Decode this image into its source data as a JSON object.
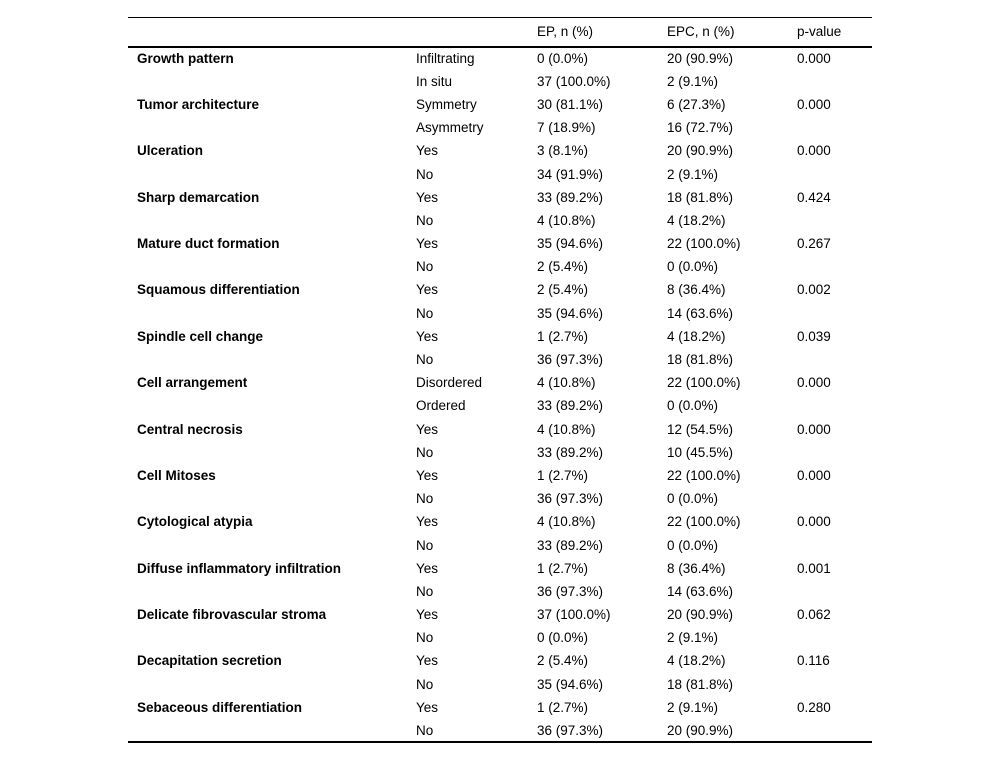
{
  "colors": {
    "text": "#000000",
    "background": "#ffffff",
    "rule": "#000000"
  },
  "table": {
    "header": {
      "category": "",
      "subcategory": "",
      "ep": "EP, n (%)",
      "epc": "EPC, n (%)",
      "pvalue": "p-value"
    },
    "rows": [
      {
        "category": "Growth pattern",
        "subcategory": "Infiltrating",
        "ep": "0 (0.0%)",
        "epc": "20 (90.9%)",
        "p": "0.000"
      },
      {
        "category": "",
        "subcategory": "In situ",
        "ep": "37 (100.0%)",
        "epc": "2 (9.1%)",
        "p": ""
      },
      {
        "category": "Tumor architecture",
        "subcategory": "Symmetry",
        "ep": "30 (81.1%)",
        "epc": "6 (27.3%)",
        "p": "0.000"
      },
      {
        "category": "",
        "subcategory": "Asymmetry",
        "ep": "7 (18.9%)",
        "epc": "16 (72.7%)",
        "p": ""
      },
      {
        "category": "Ulceration",
        "subcategory": "Yes",
        "ep": "3 (8.1%)",
        "epc": "20 (90.9%)",
        "p": "0.000"
      },
      {
        "category": "",
        "subcategory": "No",
        "ep": "34 (91.9%)",
        "epc": "2 (9.1%)",
        "p": ""
      },
      {
        "category": "Sharp demarcation",
        "subcategory": "Yes",
        "ep": "33 (89.2%)",
        "epc": "18 (81.8%)",
        "p": "0.424"
      },
      {
        "category": "",
        "subcategory": "No",
        "ep": "4 (10.8%)",
        "epc": "4 (18.2%)",
        "p": ""
      },
      {
        "category": "Mature duct formation",
        "subcategory": "Yes",
        "ep": "35 (94.6%)",
        "epc": "22 (100.0%)",
        "p": "0.267"
      },
      {
        "category": "",
        "subcategory": "No",
        "ep": "2 (5.4%)",
        "epc": "0 (0.0%)",
        "p": ""
      },
      {
        "category": "Squamous differentiation",
        "subcategory": "Yes",
        "ep": "2 (5.4%)",
        "epc": "8 (36.4%)",
        "p": "0.002"
      },
      {
        "category": "",
        "subcategory": "No",
        "ep": "35 (94.6%)",
        "epc": "14 (63.6%)",
        "p": ""
      },
      {
        "category": "Spindle cell change",
        "subcategory": "Yes",
        "ep": "1 (2.7%)",
        "epc": "4 (18.2%)",
        "p": "0.039"
      },
      {
        "category": "",
        "subcategory": "No",
        "ep": "36 (97.3%)",
        "epc": "18 (81.8%)",
        "p": ""
      },
      {
        "category": "Cell arrangement",
        "subcategory": "Disordered",
        "ep": "4 (10.8%)",
        "epc": "22 (100.0%)",
        "p": "0.000"
      },
      {
        "category": "",
        "subcategory": "Ordered",
        "ep": "33 (89.2%)",
        "epc": "0 (0.0%)",
        "p": ""
      },
      {
        "category": "Central necrosis",
        "subcategory": "Yes",
        "ep": "4 (10.8%)",
        "epc": "12 (54.5%)",
        "p": "0.000"
      },
      {
        "category": "",
        "subcategory": "No",
        "ep": "33 (89.2%)",
        "epc": "10 (45.5%)",
        "p": ""
      },
      {
        "category": "Cell Mitoses",
        "subcategory": "Yes",
        "ep": "1 (2.7%)",
        "epc": "22 (100.0%)",
        "p": "0.000"
      },
      {
        "category": "",
        "subcategory": "No",
        "ep": "36 (97.3%)",
        "epc": "0 (0.0%)",
        "p": ""
      },
      {
        "category": "Cytological atypia",
        "subcategory": "Yes",
        "ep": "4 (10.8%)",
        "epc": "22 (100.0%)",
        "p": "0.000"
      },
      {
        "category": "",
        "subcategory": "No",
        "ep": "33 (89.2%)",
        "epc": "0 (0.0%)",
        "p": ""
      },
      {
        "category": "Diffuse inflammatory infiltration",
        "subcategory": "Yes",
        "ep": "1 (2.7%)",
        "epc": "8 (36.4%)",
        "p": "0.001"
      },
      {
        "category": "",
        "subcategory": "No",
        "ep": "36 (97.3%)",
        "epc": "14 (63.6%)",
        "p": ""
      },
      {
        "category": "Delicate fibrovascular stroma",
        "subcategory": "Yes",
        "ep": "37 (100.0%)",
        "epc": "20 (90.9%)",
        "p": "0.062"
      },
      {
        "category": "",
        "subcategory": "No",
        "ep": "0 (0.0%)",
        "epc": "2 (9.1%)",
        "p": ""
      },
      {
        "category": "Decapitation secretion",
        "subcategory": "Yes",
        "ep": "2 (5.4%)",
        "epc": "4 (18.2%)",
        "p": "0.116"
      },
      {
        "category": "",
        "subcategory": "No",
        "ep": "35 (94.6%)",
        "epc": "18 (81.8%)",
        "p": ""
      },
      {
        "category": "Sebaceous differentiation",
        "subcategory": "Yes",
        "ep": "1 (2.7%)",
        "epc": "2 (9.1%)",
        "p": "0.280"
      },
      {
        "category": "",
        "subcategory": "No",
        "ep": "36 (97.3%)",
        "epc": "20 (90.9%)",
        "p": ""
      }
    ]
  }
}
